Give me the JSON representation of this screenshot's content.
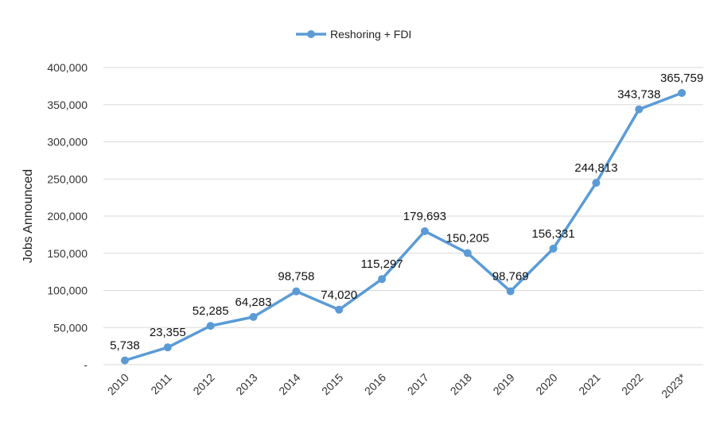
{
  "chart_data": {
    "type": "line",
    "title": "",
    "xlabel": "",
    "ylabel": "Jobs Announced",
    "categories": [
      "2010",
      "2011",
      "2012",
      "2013",
      "2014",
      "2015",
      "2016",
      "2017",
      "2018",
      "2019",
      "2020",
      "2021",
      "2022",
      "2023*"
    ],
    "series": [
      {
        "name": "Reshoring + FDI",
        "color": "#5B9BD5",
        "values": [
          5738,
          23355,
          52285,
          64283,
          98758,
          74020,
          115297,
          179693,
          150205,
          98769,
          156331,
          244813,
          343738,
          365759
        ],
        "labels": [
          "5,738",
          "23,355",
          "52,285",
          "64,283",
          "98,758",
          "74,020",
          "115,297",
          "179,693",
          "150,205",
          "98,769",
          "156,331",
          "244,813",
          "343,738",
          "365,759"
        ]
      }
    ],
    "ylim": [
      0,
      400000
    ],
    "yticks": [
      0,
      50000,
      100000,
      150000,
      200000,
      250000,
      300000,
      350000,
      400000
    ],
    "ytick_labels": [
      "-",
      "50,000",
      "100,000",
      "150,000",
      "200,000",
      "250,000",
      "300,000",
      "350,000",
      "400,000"
    ],
    "grid": true,
    "legend_position": "top-center"
  }
}
